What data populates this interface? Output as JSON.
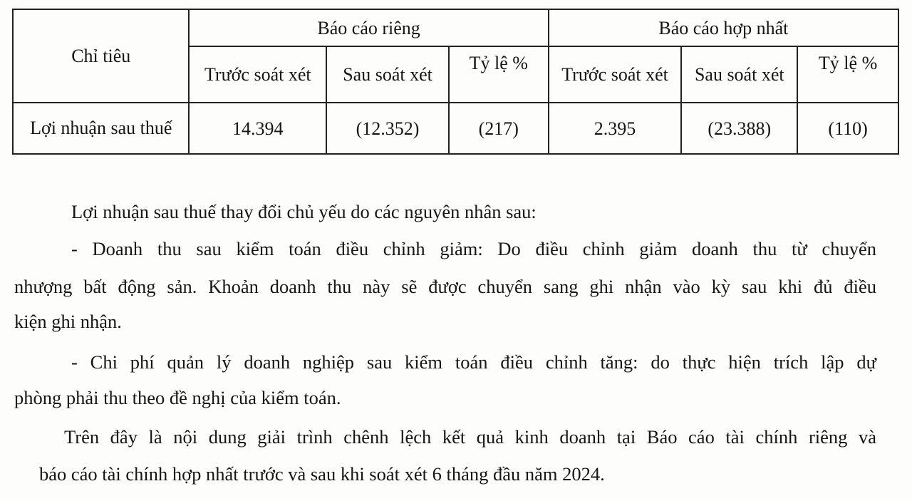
{
  "table": {
    "row_header": "Chỉ tiêu",
    "groups": [
      "Báo cáo riêng",
      "Báo cáo hợp nhất"
    ],
    "subheaders": [
      "Trước soát xét",
      "Sau soát xét",
      "Tỷ lệ %",
      "Trước soát xét",
      "Sau soát xét",
      "Tỷ lệ %"
    ],
    "rows": [
      {
        "label": "Lợi nhuận sau thuế",
        "values": [
          "14.394",
          "(12.352)",
          "(217)",
          "2.395",
          "(23.388)",
          "(110)"
        ]
      }
    ]
  },
  "text": {
    "lines": [
      "Lợi nhuận  sau thuế thay đổi chủ yếu do các nguyên nhân sau:",
      "- Doanh thu sau kiểm toán điều chỉnh giảm: Do điều chỉnh giảm doanh thu từ chuyển",
      "nhượng bất động sản. Khoản doanh thu này sẽ được chuyển sang ghi nhận vào kỳ sau khi đủ điều",
      "kiện ghi nhận.",
      "- Chi phí quản lý doanh nghiệp sau kiểm toán điều chỉnh tăng: do thực hiện trích lập dự",
      "phòng phải thu theo đề nghị của kiểm toán.",
      "Trên đây là nội dung giải trình chênh lệch kết quả kinh doanh tại Báo cáo tài chính riêng và",
      "báo cáo tài chính hợp nhất trước và sau khi soát xét 6 tháng đầu năm 2024."
    ]
  }
}
